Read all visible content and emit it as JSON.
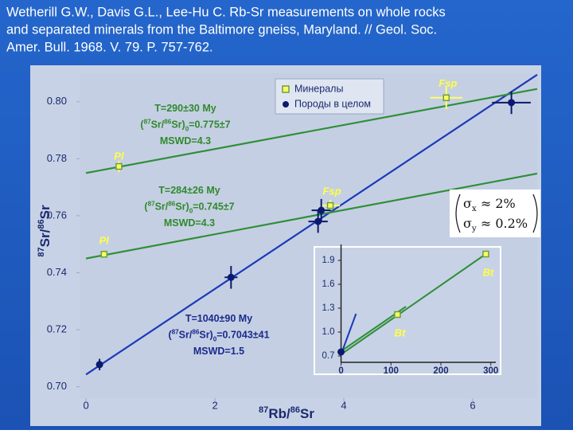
{
  "title_lines": [
    "Wetherill G.W., Davis G.L., Lee-Hu C. Rb-Sr measurements on whole rocks",
    "and separated minerals from the Baltimore gneiss, Maryland. // Geol. Soc.",
    "Amer. Bull. 1968. V. 79. P. 757-762."
  ],
  "chart_data": [
    {
      "type": "scatter",
      "x_label": [
        {
          "t": "87",
          "s": "sup"
        },
        {
          "t": "Rb/",
          "s": ""
        },
        {
          "t": "86",
          "s": "sup"
        },
        {
          "t": "Sr",
          "s": ""
        }
      ],
      "y_label": [
        {
          "t": "87",
          "s": "sup"
        },
        {
          "t": "Sr/",
          "s": ""
        },
        {
          "t": "86",
          "s": "sup"
        },
        {
          "t": "Sr",
          "s": ""
        }
      ],
      "xlim": [
        -0.1,
        7.0
      ],
      "xticks": [
        0,
        2,
        4,
        6
      ],
      "ylim": [
        0.696,
        0.81
      ],
      "yticks": [
        {
          "value": 0.7,
          "label": "0.70"
        },
        0.72,
        0.74,
        0.76,
        0.78,
        {
          "value": 0.8,
          "label": "0.80"
        }
      ],
      "series": [
        {
          "name": "Минералы",
          "color": "#ffff66",
          "marker": "square",
          "x": [
            0.51,
            0.28,
            3.79,
            5.59
          ],
          "values": [
            0.7773,
            0.7465,
            0.7636,
            0.8014
          ],
          "xerr": [
            0.05,
            0.05,
            0.15,
            0.25
          ],
          "yerr": [
            0.002,
            0.001,
            0.002,
            0.004
          ],
          "labels": [
            "Pl",
            "Pl",
            "Fsp",
            "Fsp"
          ]
        },
        {
          "name": "Породы в целом",
          "color": "#0a1a6e",
          "marker": "circle",
          "x": [
            0.21,
            2.25,
            3.6,
            3.65,
            6.6
          ],
          "values": [
            0.7078,
            0.7384,
            0.758,
            0.7619,
            0.7997
          ],
          "xerr": [
            0.05,
            0.1,
            0.15,
            0.15,
            0.3
          ],
          "yerr": [
            0.002,
            0.004,
            0.004,
            0.004,
            0.004
          ]
        },
        {
          "color": "#1a3ab8",
          "x": [
            0,
            7.0
          ],
          "values": [
            0.7043,
            0.8095
          ]
        },
        {
          "color": "#2f8f3a",
          "x": [
            0,
            7.0
          ],
          "values": [
            0.775,
            0.8045
          ]
        },
        {
          "color": "#2f8f3a",
          "x": [
            0,
            7.0
          ],
          "values": [
            0.745,
            0.7748
          ]
        }
      ],
      "annotations": [
        {
          "color": "#2f8a2e",
          "lines": [
            [
              {
                "t": "T=290±30 My",
                "s": ""
              }
            ],
            [
              {
                "t": "(",
                "s": ""
              },
              {
                "t": "87",
                "s": "sup"
              },
              {
                "t": "Sr/",
                "s": ""
              },
              {
                "t": "86",
                "s": "sup"
              },
              {
                "t": "Sr)",
                "s": ""
              },
              {
                "t": "0",
                "s": "sub"
              },
              {
                "t": "=0.775±7",
                "s": ""
              }
            ],
            [
              {
                "t": "MSWD=4.3",
                "s": ""
              }
            ]
          ]
        },
        {
          "color": "#2f8a2e",
          "lines": [
            [
              {
                "t": "T=284±26 My",
                "s": ""
              }
            ],
            [
              {
                "t": "(",
                "s": ""
              },
              {
                "t": "87",
                "s": "sup"
              },
              {
                "t": "Sr/",
                "s": ""
              },
              {
                "t": "86",
                "s": "sup"
              },
              {
                "t": "Sr)",
                "s": ""
              },
              {
                "t": "0",
                "s": "sub"
              },
              {
                "t": "=0.745±7",
                "s": ""
              }
            ],
            [
              {
                "t": "MSWD=4.3",
                "s": ""
              }
            ]
          ]
        },
        {
          "color": "#1a2a8e",
          "lines": [
            [
              {
                "t": "T=1040±90 My",
                "s": ""
              }
            ],
            [
              {
                "t": "(",
                "s": ""
              },
              {
                "t": "87",
                "s": "sup"
              },
              {
                "t": "Sr/",
                "s": ""
              },
              {
                "t": "86",
                "s": "sup"
              },
              {
                "t": "Sr)",
                "s": ""
              },
              {
                "t": "0",
                "s": "sub"
              },
              {
                "t": "=0.7043±41",
                "s": ""
              }
            ],
            [
              {
                "t": "MSWD=1.5",
                "s": ""
              }
            ]
          ]
        }
      ],
      "error_note": [
        [
          {
            "t": "σ",
            "s": ""
          },
          {
            "t": "x",
            "s": "sub"
          },
          {
            "t": " ≈ 2%",
            "s": ""
          }
        ],
        [
          {
            "t": "σ",
            "s": ""
          },
          {
            "t": "y",
            "s": "sub"
          },
          {
            "t": " ≈ 0.2%",
            "s": ""
          }
        ]
      ]
    },
    {
      "type": "scatter",
      "xlim": [
        -20,
        310
      ],
      "xticks": [
        0,
        100,
        200,
        300
      ],
      "ylim": [
        0.6,
        2.05
      ],
      "yticks": [
        0.7,
        {
          "value": 1.0,
          "label": "1.0"
        },
        1.3,
        1.6,
        1.9
      ],
      "series": [
        {
          "color": "#2f8f3a",
          "x": [
            0,
            290
          ],
          "values": [
            0.72,
            1.98
          ]
        },
        {
          "color": "#2f8f3a",
          "x": [
            0,
            130
          ],
          "values": [
            0.76,
            1.32
          ]
        },
        {
          "color": "#1a3ab8",
          "x": [
            0,
            30
          ],
          "values": [
            0.72,
            1.23
          ]
        },
        {
          "color": "#ffff66",
          "marker": "square",
          "x": [
            113,
            290
          ],
          "values": [
            1.22,
            1.98
          ],
          "labels": [
            "Bt",
            "Bt"
          ]
        },
        {
          "color": "#0a1a6e",
          "marker": "circle",
          "x": [
            0
          ],
          "values": [
            0.75
          ]
        }
      ]
    }
  ]
}
